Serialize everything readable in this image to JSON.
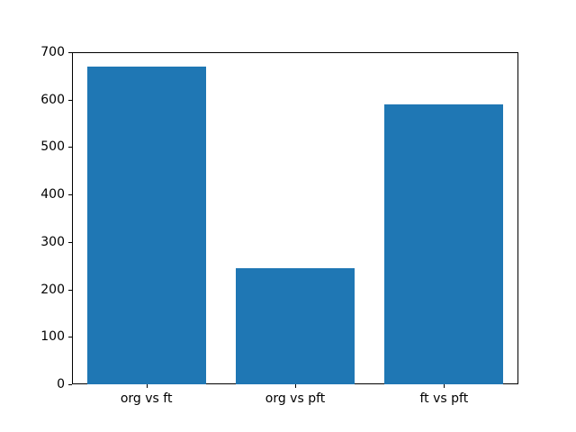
{
  "figure": {
    "background_color": "#ffffff",
    "spine_color": "#000000",
    "tick_color": "#000000",
    "bar_color": "#1f77b4"
  },
  "chart_data": {
    "type": "bar",
    "categories": [
      "org vs ft",
      "org vs pft",
      "ft vs pft"
    ],
    "values": [
      670,
      245,
      590
    ],
    "title": "",
    "xlabel": "",
    "ylabel": "",
    "ylim": [
      0,
      700
    ],
    "yticks": [
      0,
      100,
      200,
      300,
      400,
      500,
      600,
      700
    ],
    "bar_width_fraction": 0.8,
    "grid": false,
    "legend": "none"
  }
}
